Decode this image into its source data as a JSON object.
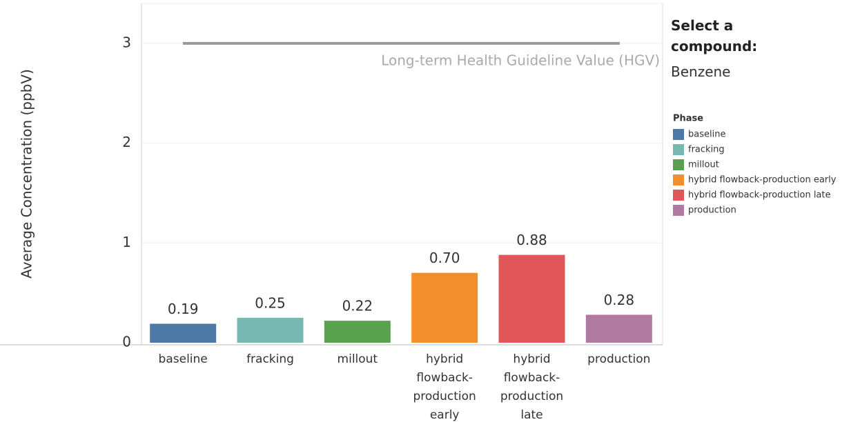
{
  "chart_data": {
    "type": "bar",
    "y_label": "Average Concentration (ppbV)",
    "categories": [
      "baseline",
      "fracking",
      "millout",
      "hybrid flowback-production early",
      "hybrid flowback-production late",
      "production"
    ],
    "values": [
      0.19,
      0.25,
      0.22,
      0.7,
      0.88,
      0.28
    ],
    "value_labels": [
      "0.19",
      "0.25",
      "0.22",
      "0.70",
      "0.88",
      "0.28"
    ],
    "colors": [
      "#4e79a7",
      "#76b7b2",
      "#59a14f",
      "#f28e2b",
      "#e15759",
      "#b07aa1"
    ],
    "ylim": [
      0,
      3.4
    ],
    "yticks": [
      0,
      1,
      2,
      3
    ],
    "grid": true,
    "reference_line": {
      "value": 3,
      "label": "Long-term Health Guideline Value (HGV)"
    },
    "legend": {
      "title": "Phase",
      "position": "right"
    },
    "filter": {
      "title": "Select a compound:",
      "value": "Benzene"
    }
  }
}
